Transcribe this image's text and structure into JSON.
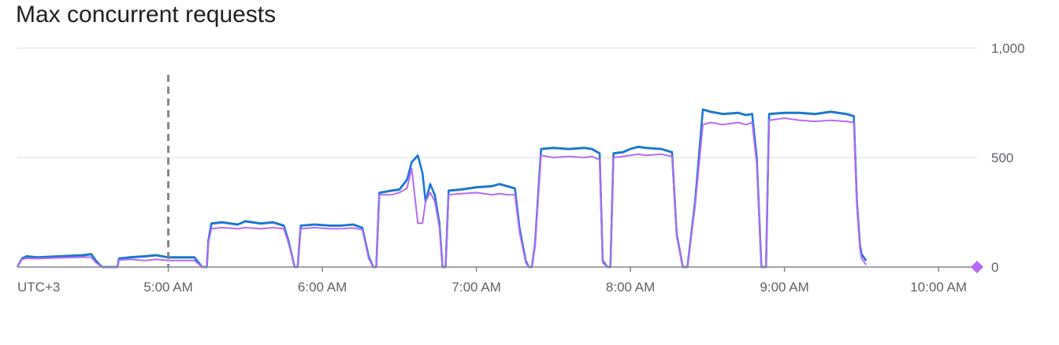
{
  "chart_data": {
    "type": "line",
    "title": "Max concurrent requests",
    "timezone_label": "UTC+3",
    "x_tick_labels": [
      "5:00 AM",
      "6:00 AM",
      "7:00 AM",
      "8:00 AM",
      "9:00 AM",
      "10:00 AM"
    ],
    "x_range_hours": [
      4.02,
      10.25
    ],
    "x_ticks_hours": [
      5,
      6,
      7,
      8,
      9,
      10
    ],
    "y_tick_labels": [
      "1,000",
      "500",
      "0"
    ],
    "y_ticks": [
      1000,
      500,
      0
    ],
    "ylim": [
      0,
      1000
    ],
    "grid": true,
    "cursor_x_hours": 5.0,
    "colors": {
      "series_a": "#1e8e3e",
      "series_b": "#1a73e8",
      "series_c": "#b46cf5",
      "grid": "#dadce0",
      "axis": "#80868b",
      "cursor": "#80868b"
    },
    "series": [
      {
        "color_key": "series_a",
        "points": [
          [
            4.02,
            0
          ],
          [
            4.05,
            40
          ],
          [
            4.08,
            50
          ],
          [
            4.15,
            45
          ],
          [
            4.3,
            50
          ],
          [
            4.45,
            55
          ],
          [
            4.5,
            60
          ],
          [
            4.53,
            30
          ],
          [
            4.57,
            0
          ],
          [
            4.67,
            0
          ],
          [
            4.68,
            40
          ],
          [
            4.75,
            45
          ],
          [
            4.85,
            50
          ],
          [
            4.92,
            55
          ],
          [
            5.0,
            45
          ],
          [
            5.1,
            45
          ],
          [
            5.17,
            45
          ],
          [
            5.22,
            0
          ],
          [
            5.25,
            0
          ],
          [
            5.26,
            120
          ],
          [
            5.28,
            200
          ],
          [
            5.35,
            205
          ],
          [
            5.45,
            195
          ],
          [
            5.5,
            210
          ],
          [
            5.6,
            200
          ],
          [
            5.68,
            205
          ],
          [
            5.75,
            190
          ],
          [
            5.78,
            120
          ],
          [
            5.82,
            0
          ],
          [
            5.84,
            0
          ],
          [
            5.86,
            190
          ],
          [
            5.95,
            195
          ],
          [
            6.05,
            190
          ],
          [
            6.12,
            190
          ],
          [
            6.2,
            195
          ],
          [
            6.26,
            180
          ],
          [
            6.3,
            50
          ],
          [
            6.33,
            0
          ],
          [
            6.35,
            0
          ],
          [
            6.37,
            340
          ],
          [
            6.45,
            350
          ],
          [
            6.5,
            355
          ],
          [
            6.55,
            400
          ],
          [
            6.58,
            480
          ],
          [
            6.62,
            510
          ],
          [
            6.65,
            430
          ],
          [
            6.67,
            300
          ],
          [
            6.7,
            380
          ],
          [
            6.73,
            330
          ],
          [
            6.76,
            200
          ],
          [
            6.78,
            0
          ],
          [
            6.8,
            0
          ],
          [
            6.82,
            350
          ],
          [
            6.9,
            355
          ],
          [
            7.0,
            365
          ],
          [
            7.1,
            370
          ],
          [
            7.15,
            380
          ],
          [
            7.2,
            370
          ],
          [
            7.25,
            360
          ],
          [
            7.28,
            180
          ],
          [
            7.32,
            30
          ],
          [
            7.34,
            0
          ],
          [
            7.36,
            0
          ],
          [
            7.38,
            100
          ],
          [
            7.42,
            540
          ],
          [
            7.5,
            545
          ],
          [
            7.6,
            540
          ],
          [
            7.7,
            545
          ],
          [
            7.75,
            540
          ],
          [
            7.8,
            520
          ],
          [
            7.82,
            30
          ],
          [
            7.85,
            0
          ],
          [
            7.87,
            0
          ],
          [
            7.89,
            520
          ],
          [
            7.95,
            525
          ],
          [
            8.0,
            540
          ],
          [
            8.05,
            550
          ],
          [
            8.1,
            545
          ],
          [
            8.2,
            540
          ],
          [
            8.27,
            525
          ],
          [
            8.3,
            150
          ],
          [
            8.34,
            0
          ],
          [
            8.37,
            0
          ],
          [
            8.42,
            300
          ],
          [
            8.47,
            720
          ],
          [
            8.52,
            710
          ],
          [
            8.6,
            700
          ],
          [
            8.7,
            705
          ],
          [
            8.75,
            695
          ],
          [
            8.79,
            700
          ],
          [
            8.82,
            500
          ],
          [
            8.85,
            0
          ],
          [
            8.88,
            0
          ],
          [
            8.9,
            700
          ],
          [
            9.0,
            705
          ],
          [
            9.1,
            705
          ],
          [
            9.2,
            700
          ],
          [
            9.3,
            710
          ],
          [
            9.4,
            700
          ],
          [
            9.45,
            690
          ],
          [
            9.47,
            300
          ],
          [
            9.49,
            100
          ],
          [
            9.5,
            60
          ],
          [
            9.53,
            30
          ]
        ]
      },
      {
        "color_key": "series_b",
        "points": [
          [
            4.02,
            0
          ],
          [
            4.05,
            38
          ],
          [
            4.08,
            48
          ],
          [
            4.15,
            43
          ],
          [
            4.3,
            48
          ],
          [
            4.45,
            53
          ],
          [
            4.5,
            58
          ],
          [
            4.53,
            28
          ],
          [
            4.57,
            0
          ],
          [
            4.67,
            0
          ],
          [
            4.68,
            38
          ],
          [
            4.75,
            43
          ],
          [
            4.85,
            48
          ],
          [
            4.92,
            53
          ],
          [
            5.0,
            43
          ],
          [
            5.1,
            43
          ],
          [
            5.17,
            43
          ],
          [
            5.22,
            0
          ],
          [
            5.25,
            0
          ],
          [
            5.26,
            120
          ],
          [
            5.28,
            198
          ],
          [
            5.35,
            203
          ],
          [
            5.45,
            193
          ],
          [
            5.5,
            208
          ],
          [
            5.6,
            198
          ],
          [
            5.68,
            203
          ],
          [
            5.75,
            188
          ],
          [
            5.78,
            120
          ],
          [
            5.82,
            0
          ],
          [
            5.84,
            0
          ],
          [
            5.86,
            188
          ],
          [
            5.95,
            193
          ],
          [
            6.05,
            188
          ],
          [
            6.12,
            188
          ],
          [
            6.2,
            193
          ],
          [
            6.26,
            178
          ],
          [
            6.3,
            50
          ],
          [
            6.33,
            0
          ],
          [
            6.35,
            0
          ],
          [
            6.37,
            338
          ],
          [
            6.45,
            348
          ],
          [
            6.5,
            353
          ],
          [
            6.55,
            398
          ],
          [
            6.58,
            478
          ],
          [
            6.62,
            508
          ],
          [
            6.65,
            428
          ],
          [
            6.67,
            298
          ],
          [
            6.7,
            378
          ],
          [
            6.73,
            328
          ],
          [
            6.76,
            198
          ],
          [
            6.78,
            0
          ],
          [
            6.8,
            0
          ],
          [
            6.82,
            348
          ],
          [
            6.9,
            353
          ],
          [
            7.0,
            363
          ],
          [
            7.1,
            368
          ],
          [
            7.15,
            378
          ],
          [
            7.2,
            368
          ],
          [
            7.25,
            358
          ],
          [
            7.28,
            178
          ],
          [
            7.32,
            28
          ],
          [
            7.34,
            0
          ],
          [
            7.36,
            0
          ],
          [
            7.38,
            100
          ],
          [
            7.42,
            538
          ],
          [
            7.5,
            543
          ],
          [
            7.6,
            538
          ],
          [
            7.7,
            543
          ],
          [
            7.75,
            538
          ],
          [
            7.8,
            518
          ],
          [
            7.82,
            28
          ],
          [
            7.85,
            0
          ],
          [
            7.87,
            0
          ],
          [
            7.89,
            518
          ],
          [
            7.95,
            523
          ],
          [
            8.0,
            538
          ],
          [
            8.05,
            548
          ],
          [
            8.1,
            543
          ],
          [
            8.2,
            538
          ],
          [
            8.27,
            523
          ],
          [
            8.3,
            148
          ],
          [
            8.34,
            0
          ],
          [
            8.37,
            0
          ],
          [
            8.42,
            298
          ],
          [
            8.47,
            718
          ],
          [
            8.52,
            708
          ],
          [
            8.6,
            698
          ],
          [
            8.7,
            703
          ],
          [
            8.75,
            693
          ],
          [
            8.79,
            698
          ],
          [
            8.82,
            498
          ],
          [
            8.85,
            0
          ],
          [
            8.88,
            0
          ],
          [
            8.9,
            698
          ],
          [
            9.0,
            703
          ],
          [
            9.1,
            703
          ],
          [
            9.2,
            698
          ],
          [
            9.3,
            708
          ],
          [
            9.4,
            698
          ],
          [
            9.45,
            688
          ],
          [
            9.47,
            298
          ],
          [
            9.49,
            98
          ],
          [
            9.5,
            58
          ],
          [
            9.53,
            28
          ]
        ]
      },
      {
        "color_key": "series_c",
        "points": [
          [
            4.02,
            0
          ],
          [
            4.05,
            35
          ],
          [
            4.08,
            40
          ],
          [
            4.15,
            38
          ],
          [
            4.3,
            42
          ],
          [
            4.45,
            45
          ],
          [
            4.5,
            45
          ],
          [
            4.53,
            20
          ],
          [
            4.57,
            0
          ],
          [
            4.67,
            0
          ],
          [
            4.68,
            32
          ],
          [
            4.75,
            35
          ],
          [
            4.85,
            30
          ],
          [
            4.92,
            35
          ],
          [
            5.0,
            30
          ],
          [
            5.1,
            30
          ],
          [
            5.17,
            30
          ],
          [
            5.22,
            0
          ],
          [
            5.25,
            0
          ],
          [
            5.26,
            110
          ],
          [
            5.28,
            175
          ],
          [
            5.35,
            180
          ],
          [
            5.45,
            175
          ],
          [
            5.5,
            180
          ],
          [
            5.6,
            175
          ],
          [
            5.68,
            180
          ],
          [
            5.75,
            175
          ],
          [
            5.78,
            110
          ],
          [
            5.82,
            0
          ],
          [
            5.84,
            0
          ],
          [
            5.86,
            175
          ],
          [
            5.95,
            180
          ],
          [
            6.05,
            175
          ],
          [
            6.12,
            175
          ],
          [
            6.2,
            178
          ],
          [
            6.26,
            170
          ],
          [
            6.3,
            40
          ],
          [
            6.33,
            0
          ],
          [
            6.35,
            0
          ],
          [
            6.37,
            330
          ],
          [
            6.45,
            330
          ],
          [
            6.5,
            340
          ],
          [
            6.55,
            360
          ],
          [
            6.58,
            450
          ],
          [
            6.62,
            200
          ],
          [
            6.65,
            200
          ],
          [
            6.67,
            300
          ],
          [
            6.7,
            340
          ],
          [
            6.73,
            300
          ],
          [
            6.76,
            180
          ],
          [
            6.78,
            0
          ],
          [
            6.8,
            0
          ],
          [
            6.82,
            330
          ],
          [
            6.9,
            335
          ],
          [
            7.0,
            340
          ],
          [
            7.1,
            330
          ],
          [
            7.15,
            335
          ],
          [
            7.2,
            330
          ],
          [
            7.25,
            330
          ],
          [
            7.28,
            160
          ],
          [
            7.32,
            20
          ],
          [
            7.34,
            0
          ],
          [
            7.36,
            0
          ],
          [
            7.38,
            90
          ],
          [
            7.42,
            510
          ],
          [
            7.5,
            500
          ],
          [
            7.6,
            505
          ],
          [
            7.7,
            500
          ],
          [
            7.75,
            505
          ],
          [
            7.8,
            490
          ],
          [
            7.82,
            20
          ],
          [
            7.85,
            0
          ],
          [
            7.87,
            0
          ],
          [
            7.89,
            500
          ],
          [
            7.95,
            505
          ],
          [
            8.0,
            510
          ],
          [
            8.05,
            515
          ],
          [
            8.1,
            510
          ],
          [
            8.2,
            515
          ],
          [
            8.27,
            505
          ],
          [
            8.3,
            140
          ],
          [
            8.34,
            0
          ],
          [
            8.37,
            0
          ],
          [
            8.42,
            280
          ],
          [
            8.47,
            650
          ],
          [
            8.52,
            660
          ],
          [
            8.6,
            650
          ],
          [
            8.7,
            660
          ],
          [
            8.75,
            650
          ],
          [
            8.79,
            660
          ],
          [
            8.82,
            470
          ],
          [
            8.85,
            0
          ],
          [
            8.88,
            0
          ],
          [
            8.9,
            670
          ],
          [
            9.0,
            680
          ],
          [
            9.1,
            670
          ],
          [
            9.2,
            665
          ],
          [
            9.3,
            670
          ],
          [
            9.4,
            665
          ],
          [
            9.45,
            660
          ],
          [
            9.47,
            280
          ],
          [
            9.49,
            80
          ],
          [
            9.5,
            40
          ],
          [
            9.53,
            10
          ]
        ]
      }
    ],
    "end_marker": {
      "x_hours": 10.25,
      "y": 0,
      "color_key": "series_c"
    }
  }
}
